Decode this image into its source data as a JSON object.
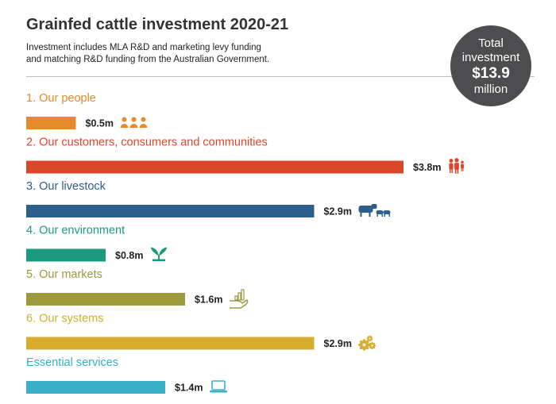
{
  "title": "Grainfed cattle investment 2020-21",
  "subtitle": "Investment includes MLA R&D and marketing levy funding\nand matching R&D funding from the Australian Government.",
  "total": {
    "line1": "Total",
    "line2": "investment",
    "amount": "$13.9",
    "line4": "million"
  },
  "chart_data": {
    "type": "bar",
    "orientation": "horizontal",
    "unit": "$m",
    "categories": [
      "1. Our people",
      "2. Our customers, consumers and communities",
      "3. Our livestock",
      "4. Our environment",
      "5. Our markets",
      "6. Our systems",
      "Essential services"
    ],
    "values": [
      0.5,
      3.8,
      2.9,
      0.8,
      1.6,
      2.9,
      1.4
    ],
    "value_labels": [
      "$0.5m",
      "$3.8m",
      "$2.9m",
      "$0.8m",
      "$1.6m",
      "$2.9m",
      "$1.4m"
    ],
    "colors": [
      "#e8892a",
      "#d9472b",
      "#2b5f8e",
      "#1b9a7d",
      "#9c9a3c",
      "#d6ad2c",
      "#3ab0c8"
    ],
    "icons": [
      "people-icon",
      "family-icon",
      "livestock-icon",
      "seedling-icon",
      "growth-hand-icon",
      "gears-icon",
      "laptop-icon"
    ]
  }
}
